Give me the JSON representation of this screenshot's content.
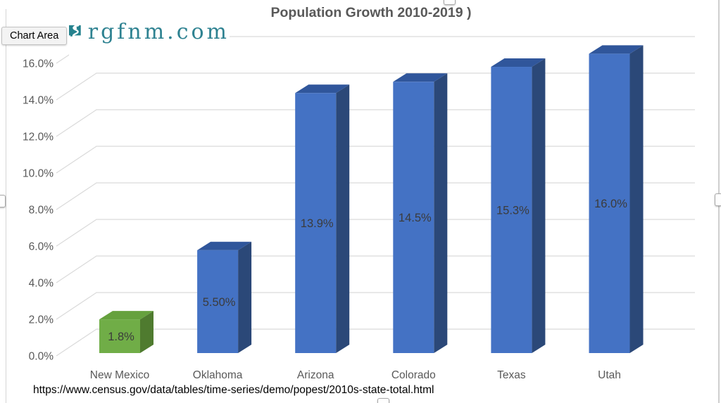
{
  "window": {
    "tooltip": "Chart Area",
    "logo": {
      "text": "rgfnm.com",
      "icon": "new-mexico-river-logo",
      "teal": "#26828E",
      "text_color": "#2E8291"
    },
    "source_url": "https://www.census.gov/data/tables/time-series/demo/popest/2010s-state-total.html"
  },
  "chart_data": {
    "type": "bar",
    "style": "3d-column",
    "title": "Population Growth 2010-2019 )",
    "categories": [
      "New Mexico",
      "Oklahoma",
      "Arizona",
      "Colorado",
      "Texas",
      "Utah"
    ],
    "values": [
      1.8,
      5.5,
      13.9,
      14.5,
      15.3,
      16.0
    ],
    "value_labels": [
      "1.8%",
      "5.50%",
      "13.9%",
      "14.5%",
      "15.3%",
      "16.0%"
    ],
    "xlabel": "",
    "ylabel": "",
    "ylim": [
      0,
      16
    ],
    "ytick_step": 2,
    "ytick_labels": [
      "0.0%",
      "2.0%",
      "4.0%",
      "6.0%",
      "8.0%",
      "10.0%",
      "12.0%",
      "14.0%",
      "16.0%"
    ],
    "grid": true,
    "legend": false,
    "colors": {
      "bar_keys": [
        "green",
        "blue",
        "blue",
        "blue",
        "blue",
        "blue"
      ],
      "green": {
        "front": "#70AD47",
        "top": "#66A13D",
        "side": "#4F7B2F"
      },
      "blue": {
        "front": "#4472C4",
        "top": "#30569B",
        "side": "#2B4878"
      },
      "grid": "#DADADA",
      "axis_text": "#595959",
      "value_label_text": "#3B3B3B",
      "title_text": "#595959"
    }
  }
}
